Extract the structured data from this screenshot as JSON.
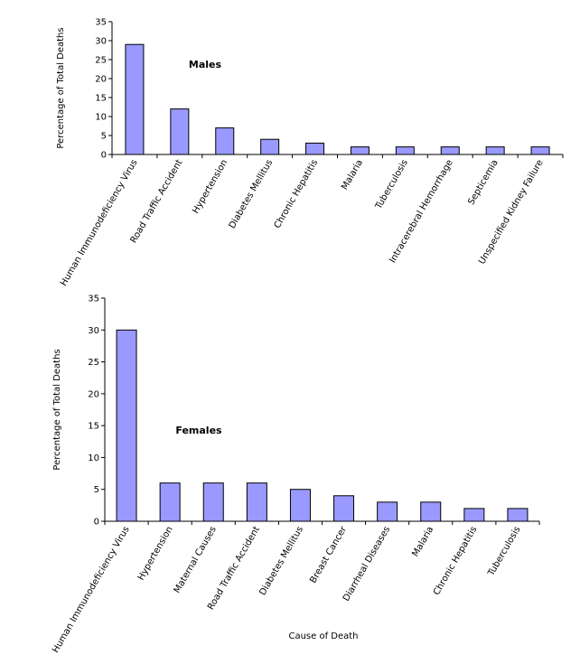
{
  "chart_data": [
    {
      "type": "bar",
      "title": "",
      "annotation": "Males",
      "ylabel": "Percentage of Total Deaths",
      "xlabel": "",
      "ylim": [
        0,
        35
      ],
      "yticks": [
        0,
        5,
        10,
        15,
        20,
        25,
        30,
        35
      ],
      "categories": [
        "Human Immunodeficiency Virus",
        "Road Traffic Accident",
        "Hypertension",
        "Diabetes Mellitus",
        "Chronic Hepatitis",
        "Malaria",
        "Tuberculosis",
        "Intracerebral Hemorrhage",
        "Septicemia",
        "Unspecified Kidney Failure"
      ],
      "values": [
        29,
        12,
        7,
        4,
        3,
        2,
        2,
        2,
        2,
        2
      ],
      "bar_color": "#9999ff",
      "grid": false,
      "legend": "none"
    },
    {
      "type": "bar",
      "title": "",
      "annotation": "Females",
      "ylabel": "Percentage of Total Deaths",
      "xlabel": "Cause of Death",
      "ylim": [
        0,
        35
      ],
      "yticks": [
        0,
        5,
        10,
        15,
        20,
        25,
        30,
        35
      ],
      "categories": [
        "Human Immunodeficiency Virus",
        "Hypertension",
        "Maternal Causes",
        "Road Traffic Accident",
        "Diabetes Mellitus",
        "Breast Cancer",
        "Diarrheal Diseases",
        "Malaria",
        "Chronic Hepatitis",
        "Tuberculosis"
      ],
      "values": [
        30,
        6,
        6,
        6,
        5,
        4,
        3,
        3,
        2,
        2
      ],
      "bar_color": "#9999ff",
      "grid": false,
      "legend": "none"
    }
  ]
}
